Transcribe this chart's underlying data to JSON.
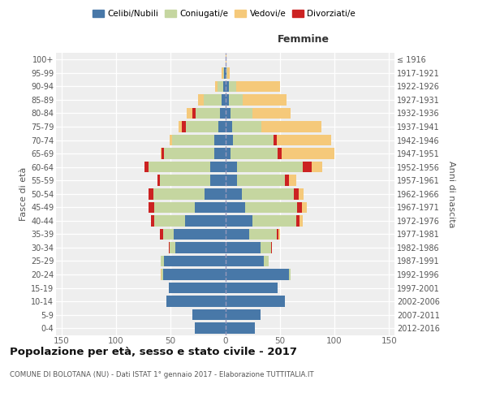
{
  "age_groups": [
    "0-4",
    "5-9",
    "10-14",
    "15-19",
    "20-24",
    "25-29",
    "30-34",
    "35-39",
    "40-44",
    "45-49",
    "50-54",
    "55-59",
    "60-64",
    "65-69",
    "70-74",
    "75-79",
    "80-84",
    "85-89",
    "90-94",
    "95-99",
    "100+"
  ],
  "birth_years": [
    "2012-2016",
    "2007-2011",
    "2002-2006",
    "1997-2001",
    "1992-1996",
    "1987-1991",
    "1982-1986",
    "1977-1981",
    "1972-1976",
    "1967-1971",
    "1962-1966",
    "1957-1961",
    "1952-1956",
    "1947-1951",
    "1942-1946",
    "1937-1941",
    "1932-1936",
    "1927-1931",
    "1922-1926",
    "1917-1921",
    "≤ 1916"
  ],
  "males_celibi": [
    28,
    30,
    54,
    52,
    57,
    56,
    46,
    47,
    37,
    28,
    19,
    14,
    14,
    10,
    10,
    6,
    5,
    3,
    2,
    1,
    0
  ],
  "males_coniugati": [
    0,
    0,
    0,
    0,
    1,
    3,
    5,
    10,
    28,
    37,
    47,
    46,
    56,
    46,
    39,
    30,
    22,
    17,
    5,
    1,
    0
  ],
  "males_vedovi": [
    0,
    0,
    0,
    0,
    1,
    0,
    0,
    0,
    0,
    0,
    0,
    0,
    0,
    1,
    2,
    3,
    5,
    5,
    2,
    1,
    0
  ],
  "males_divorziati": [
    0,
    0,
    0,
    0,
    0,
    0,
    1,
    3,
    3,
    5,
    4,
    2,
    4,
    2,
    0,
    4,
    3,
    0,
    0,
    0,
    0
  ],
  "females_nubili": [
    27,
    32,
    55,
    48,
    58,
    35,
    32,
    22,
    25,
    18,
    15,
    11,
    11,
    5,
    7,
    6,
    5,
    3,
    3,
    1,
    0
  ],
  "females_coniugate": [
    0,
    0,
    0,
    0,
    2,
    5,
    10,
    25,
    40,
    48,
    48,
    44,
    60,
    43,
    37,
    27,
    20,
    13,
    7,
    1,
    0
  ],
  "females_vedove": [
    0,
    0,
    0,
    0,
    0,
    0,
    0,
    1,
    3,
    5,
    5,
    7,
    10,
    48,
    50,
    55,
    35,
    40,
    40,
    2,
    1
  ],
  "females_divorziate": [
    0,
    0,
    0,
    0,
    0,
    0,
    1,
    2,
    3,
    4,
    4,
    3,
    8,
    4,
    3,
    0,
    0,
    0,
    0,
    0,
    0
  ],
  "color_celibi": "#4878a8",
  "color_coniugati": "#c5d6a0",
  "color_vedovi": "#f5c97a",
  "color_divorziati": "#cc2222",
  "xlim": 155,
  "title": "Popolazione per età, sesso e stato civile - 2017",
  "subtitle": "COMUNE DI BOLOTANA (NU) - Dati ISTAT 1° gennaio 2017 - Elaborazione TUTTITALIA.IT",
  "ylabel_left": "Fasce di età",
  "ylabel_right": "Anni di nascita",
  "bg_color": "#eeeeee",
  "femmine_label": "Femmine",
  "legend_labels": [
    "Celibi/Nubili",
    "Coniugati/e",
    "Vedovi/e",
    "Divorziati/e"
  ]
}
